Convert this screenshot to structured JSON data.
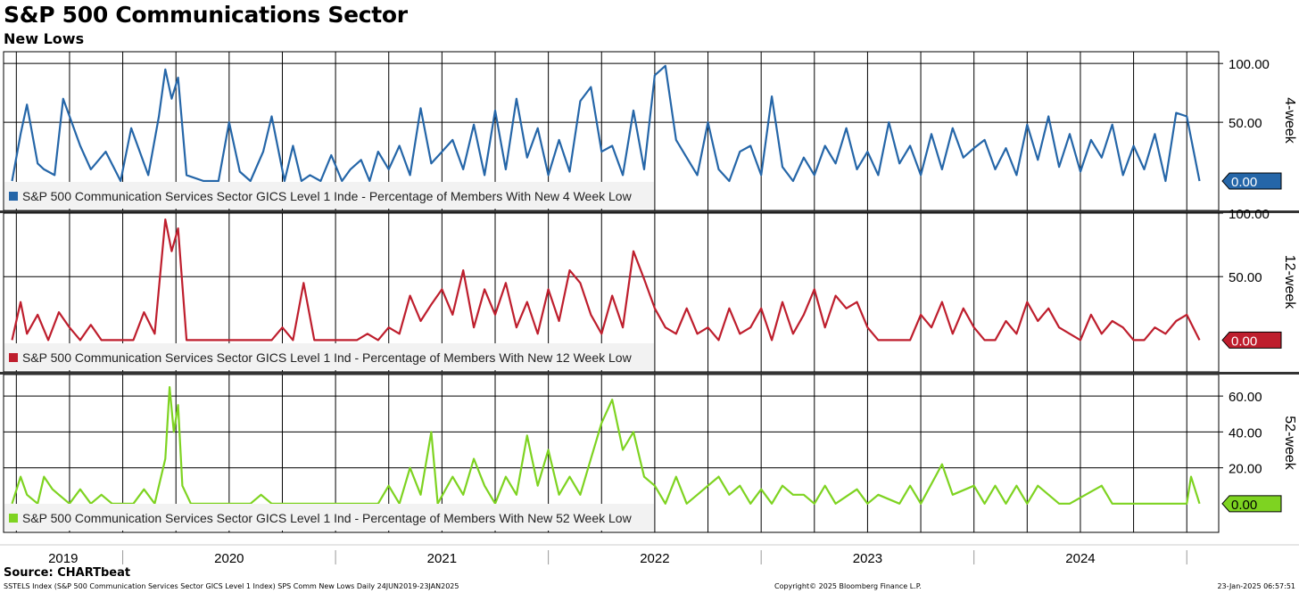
{
  "header": {
    "title": "S&P 500 Communications Sector",
    "subtitle": "New Lows"
  },
  "footer": {
    "source": "Source: CHARTbeat",
    "index_line": "SSTELS Index (S&P 500 Communication Services Sector GICS Level 1 Index) SPS Comm New Lows  Daily 24JUN2019-23JAN2025",
    "copyright": "Copyright© 2025 Bloomberg Finance L.P.",
    "timestamp": "23-Jan-2025 06:57:51"
  },
  "chart_data": [
    {
      "type": "line",
      "panel_label": "4-week",
      "legend": "S&P 500 Communication Services Sector GICS Level 1 Inde - Percentage of Members With New 4 Week Low",
      "color": "#2566a8",
      "ylim": [
        -25,
        110
      ],
      "yticks": [
        {
          "v": 50,
          "label": "50.00"
        },
        {
          "v": 100,
          "label": "100.00"
        }
      ],
      "last_value": "0.00",
      "x": [
        2019.48,
        2019.52,
        2019.55,
        2019.6,
        2019.63,
        2019.68,
        2019.72,
        2019.8,
        2019.85,
        2019.92,
        2019.99,
        2020.04,
        2020.12,
        2020.17,
        2020.2,
        2020.23,
        2020.26,
        2020.3,
        2020.38,
        2020.45,
        2020.5,
        2020.55,
        2020.6,
        2020.66,
        2020.7,
        2020.76,
        2020.8,
        2020.84,
        2020.88,
        2020.93,
        2020.98,
        2021.03,
        2021.07,
        2021.12,
        2021.16,
        2021.2,
        2021.25,
        2021.3,
        2021.35,
        2021.4,
        2021.45,
        2021.5,
        2021.55,
        2021.6,
        2021.65,
        2021.7,
        2021.75,
        2021.8,
        2021.85,
        2021.9,
        2021.95,
        2022.0,
        2022.05,
        2022.1,
        2022.15,
        2022.2,
        2022.25,
        2022.3,
        2022.35,
        2022.4,
        2022.45,
        2022.5,
        2022.55,
        2022.6,
        2022.65,
        2022.7,
        2022.75,
        2022.8,
        2022.85,
        2022.9,
        2022.95,
        2023.0,
        2023.05,
        2023.1,
        2023.15,
        2023.2,
        2023.25,
        2023.3,
        2023.35,
        2023.4,
        2023.45,
        2023.5,
        2023.55,
        2023.6,
        2023.65,
        2023.7,
        2023.75,
        2023.8,
        2023.85,
        2023.9,
        2023.95,
        2024.0,
        2024.05,
        2024.1,
        2024.15,
        2024.2,
        2024.25,
        2024.3,
        2024.35,
        2024.4,
        2024.45,
        2024.5,
        2024.55,
        2024.6,
        2024.65,
        2024.7,
        2024.75,
        2024.8,
        2024.85,
        2024.9,
        2024.95,
        2025.0,
        2025.06
      ],
      "y": [
        0,
        40,
        65,
        15,
        10,
        5,
        70,
        30,
        10,
        25,
        0,
        45,
        5,
        55,
        95,
        70,
        88,
        5,
        0,
        0,
        50,
        8,
        0,
        25,
        55,
        0,
        30,
        0,
        5,
        0,
        22,
        0,
        10,
        18,
        0,
        25,
        10,
        30,
        5,
        62,
        15,
        25,
        35,
        10,
        48,
        5,
        60,
        10,
        70,
        20,
        45,
        5,
        35,
        8,
        68,
        80,
        25,
        30,
        5,
        60,
        10,
        90,
        98,
        35,
        20,
        5,
        50,
        10,
        0,
        25,
        30,
        5,
        72,
        12,
        0,
        20,
        5,
        30,
        15,
        45,
        10,
        25,
        5,
        50,
        15,
        30,
        5,
        40,
        10,
        45,
        20,
        28,
        35,
        10,
        28,
        5,
        48,
        18,
        55,
        12,
        40,
        8,
        35,
        20,
        48,
        5,
        30,
        10,
        40,
        0,
        58,
        55,
        0
      ]
    },
    {
      "type": "line",
      "panel_label": "12-week",
      "legend": "S&P 500 Communication Services Sector GICS Level 1 Ind - Percentage of Members With New 12 Week Low",
      "color": "#be1e2d",
      "ylim": [
        -25,
        100
      ],
      "yticks": [
        {
          "v": 50,
          "label": "50.00"
        },
        {
          "v": 100,
          "label": "100.00"
        }
      ],
      "last_value": "0.00",
      "x": [
        2019.48,
        2019.52,
        2019.55,
        2019.6,
        2019.65,
        2019.7,
        2019.75,
        2019.8,
        2019.85,
        2019.9,
        2019.95,
        2020.0,
        2020.05,
        2020.1,
        2020.15,
        2020.2,
        2020.23,
        2020.26,
        2020.3,
        2020.35,
        2020.45,
        2020.5,
        2020.55,
        2020.6,
        2020.65,
        2020.7,
        2020.75,
        2020.8,
        2020.85,
        2020.9,
        2020.95,
        2021.0,
        2021.05,
        2021.1,
        2021.15,
        2021.2,
        2021.25,
        2021.3,
        2021.35,
        2021.4,
        2021.45,
        2021.5,
        2021.55,
        2021.6,
        2021.65,
        2021.7,
        2021.75,
        2021.8,
        2021.85,
        2021.9,
        2021.95,
        2022.0,
        2022.05,
        2022.1,
        2022.15,
        2022.2,
        2022.25,
        2022.3,
        2022.35,
        2022.4,
        2022.45,
        2022.5,
        2022.55,
        2022.6,
        2022.65,
        2022.7,
        2022.75,
        2022.8,
        2022.85,
        2022.9,
        2022.95,
        2023.0,
        2023.05,
        2023.1,
        2023.15,
        2023.2,
        2023.25,
        2023.3,
        2023.35,
        2023.4,
        2023.45,
        2023.5,
        2023.55,
        2023.6,
        2023.65,
        2023.7,
        2023.75,
        2023.8,
        2023.85,
        2023.9,
        2023.95,
        2024.0,
        2024.05,
        2024.1,
        2024.15,
        2024.2,
        2024.25,
        2024.3,
        2024.35,
        2024.4,
        2024.45,
        2024.5,
        2024.55,
        2024.6,
        2024.65,
        2024.7,
        2024.75,
        2024.8,
        2024.85,
        2024.9,
        2024.95,
        2025.0,
        2025.06
      ],
      "y": [
        0,
        30,
        5,
        20,
        0,
        22,
        10,
        0,
        12,
        0,
        0,
        0,
        0,
        22,
        5,
        95,
        70,
        88,
        0,
        0,
        0,
        0,
        0,
        0,
        0,
        0,
        10,
        0,
        45,
        0,
        0,
        0,
        0,
        0,
        5,
        0,
        10,
        5,
        35,
        15,
        28,
        40,
        20,
        55,
        10,
        40,
        20,
        45,
        10,
        30,
        5,
        40,
        15,
        55,
        45,
        20,
        5,
        35,
        10,
        70,
        48,
        25,
        10,
        5,
        25,
        5,
        10,
        0,
        25,
        5,
        10,
        25,
        0,
        30,
        5,
        20,
        40,
        10,
        35,
        25,
        30,
        10,
        0,
        0,
        0,
        0,
        20,
        10,
        30,
        5,
        25,
        10,
        0,
        0,
        15,
        5,
        30,
        15,
        25,
        10,
        5,
        0,
        20,
        5,
        15,
        10,
        0,
        0,
        10,
        5,
        15,
        20,
        0
      ]
    },
    {
      "type": "line",
      "panel_label": "52-week",
      "legend": "S&P 500 Communication Services Sector GICS Level 1 Ind - Percentage of Members With New 52 Week Low",
      "color": "#7ed321",
      "ylim": [
        -16,
        72
      ],
      "yticks": [
        {
          "v": 20,
          "label": "20.00"
        },
        {
          "v": 40,
          "label": "40.00"
        },
        {
          "v": 60,
          "label": "60.00"
        }
      ],
      "last_value": "0.00",
      "x": [
        2019.48,
        2019.52,
        2019.55,
        2019.6,
        2019.63,
        2019.67,
        2019.7,
        2019.75,
        2019.8,
        2019.85,
        2019.9,
        2019.95,
        2020.0,
        2020.05,
        2020.1,
        2020.15,
        2020.2,
        2020.22,
        2020.24,
        2020.26,
        2020.28,
        2020.32,
        2020.4,
        2020.6,
        2020.65,
        2020.7,
        2021.2,
        2021.25,
        2021.3,
        2021.35,
        2021.4,
        2021.45,
        2021.48,
        2021.55,
        2021.6,
        2021.65,
        2021.7,
        2021.75,
        2021.8,
        2021.85,
        2021.9,
        2021.95,
        2022.0,
        2022.05,
        2022.1,
        2022.15,
        2022.2,
        2022.25,
        2022.3,
        2022.35,
        2022.4,
        2022.45,
        2022.5,
        2022.55,
        2022.6,
        2022.65,
        2022.7,
        2022.75,
        2022.8,
        2022.85,
        2022.9,
        2022.95,
        2023.0,
        2023.05,
        2023.1,
        2023.15,
        2023.2,
        2023.25,
        2023.3,
        2023.35,
        2023.45,
        2023.5,
        2023.55,
        2023.65,
        2023.7,
        2023.75,
        2023.85,
        2023.9,
        2024.0,
        2024.05,
        2024.1,
        2024.15,
        2024.2,
        2024.25,
        2024.3,
        2024.4,
        2024.45,
        2024.6,
        2024.65,
        2024.85,
        2024.9,
        2025.0,
        2025.02,
        2025.06
      ],
      "y": [
        0,
        15,
        5,
        0,
        15,
        8,
        5,
        0,
        8,
        0,
        5,
        0,
        0,
        0,
        8,
        0,
        25,
        65,
        40,
        55,
        10,
        0,
        0,
        0,
        5,
        0,
        0,
        10,
        0,
        20,
        5,
        40,
        0,
        15,
        5,
        25,
        10,
        0,
        15,
        5,
        38,
        10,
        30,
        5,
        15,
        5,
        25,
        45,
        58,
        30,
        40,
        15,
        10,
        0,
        15,
        0,
        5,
        10,
        15,
        5,
        10,
        0,
        8,
        0,
        10,
        5,
        5,
        0,
        10,
        0,
        8,
        0,
        5,
        0,
        10,
        0,
        22,
        5,
        10,
        0,
        10,
        0,
        10,
        0,
        10,
        0,
        0,
        10,
        0,
        0,
        0,
        0,
        15,
        0
      ]
    }
  ],
  "x_axis": {
    "xlim": [
      2019.44,
      2025.15
    ],
    "years": [
      "2019",
      "2020",
      "2021",
      "2022",
      "2023",
      "2024"
    ]
  }
}
